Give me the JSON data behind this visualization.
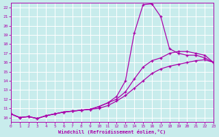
{
  "xlabel": "Windchill (Refroidissement éolien,°C)",
  "ylabel": "",
  "xlim": [
    0,
    23
  ],
  "ylim": [
    9.5,
    22.5
  ],
  "yticks": [
    10,
    11,
    12,
    13,
    14,
    15,
    16,
    17,
    18,
    19,
    20,
    21,
    22
  ],
  "xticks": [
    0,
    1,
    2,
    3,
    4,
    5,
    6,
    7,
    8,
    9,
    10,
    11,
    12,
    13,
    14,
    15,
    16,
    17,
    18,
    19,
    20,
    21,
    22,
    23
  ],
  "background_color": "#c8ecec",
  "grid_color": "#ffffff",
  "line_color": "#aa00aa",
  "lines": [
    {
      "x": [
        0,
        1,
        2,
        3,
        4,
        5,
        6,
        7,
        8,
        9,
        10,
        11,
        12,
        13,
        14,
        15,
        16,
        17,
        18,
        19,
        20,
        21,
        22,
        23
      ],
      "y": [
        10.4,
        10.0,
        10.1,
        9.9,
        10.2,
        10.4,
        10.6,
        10.7,
        10.8,
        10.9,
        11.2,
        11.6,
        12.3,
        14.0,
        19.2,
        22.3,
        22.4,
        21.0,
        17.5,
        17.0,
        16.8,
        16.8,
        16.5,
        16.0
      ]
    },
    {
      "x": [
        0,
        1,
        2,
        3,
        4,
        5,
        6,
        7,
        8,
        9,
        10,
        11,
        12,
        13,
        14,
        15,
        16,
        17,
        18,
        19,
        20,
        21,
        22,
        23
      ],
      "y": [
        10.4,
        10.0,
        10.1,
        9.9,
        10.2,
        10.4,
        10.6,
        10.7,
        10.8,
        10.9,
        11.2,
        11.6,
        12.0,
        12.8,
        14.2,
        15.5,
        16.2,
        16.5,
        17.0,
        17.2,
        17.2,
        17.0,
        16.8,
        16.0
      ]
    },
    {
      "x": [
        0,
        1,
        2,
        3,
        4,
        5,
        6,
        7,
        8,
        9,
        10,
        11,
        12,
        13,
        14,
        15,
        16,
        17,
        18,
        19,
        20,
        21,
        22,
        23
      ],
      "y": [
        10.4,
        10.0,
        10.1,
        9.9,
        10.2,
        10.4,
        10.6,
        10.7,
        10.8,
        10.9,
        11.0,
        11.3,
        11.8,
        12.4,
        13.2,
        14.0,
        14.8,
        15.3,
        15.6,
        15.8,
        16.0,
        16.2,
        16.3,
        16.0
      ]
    }
  ]
}
